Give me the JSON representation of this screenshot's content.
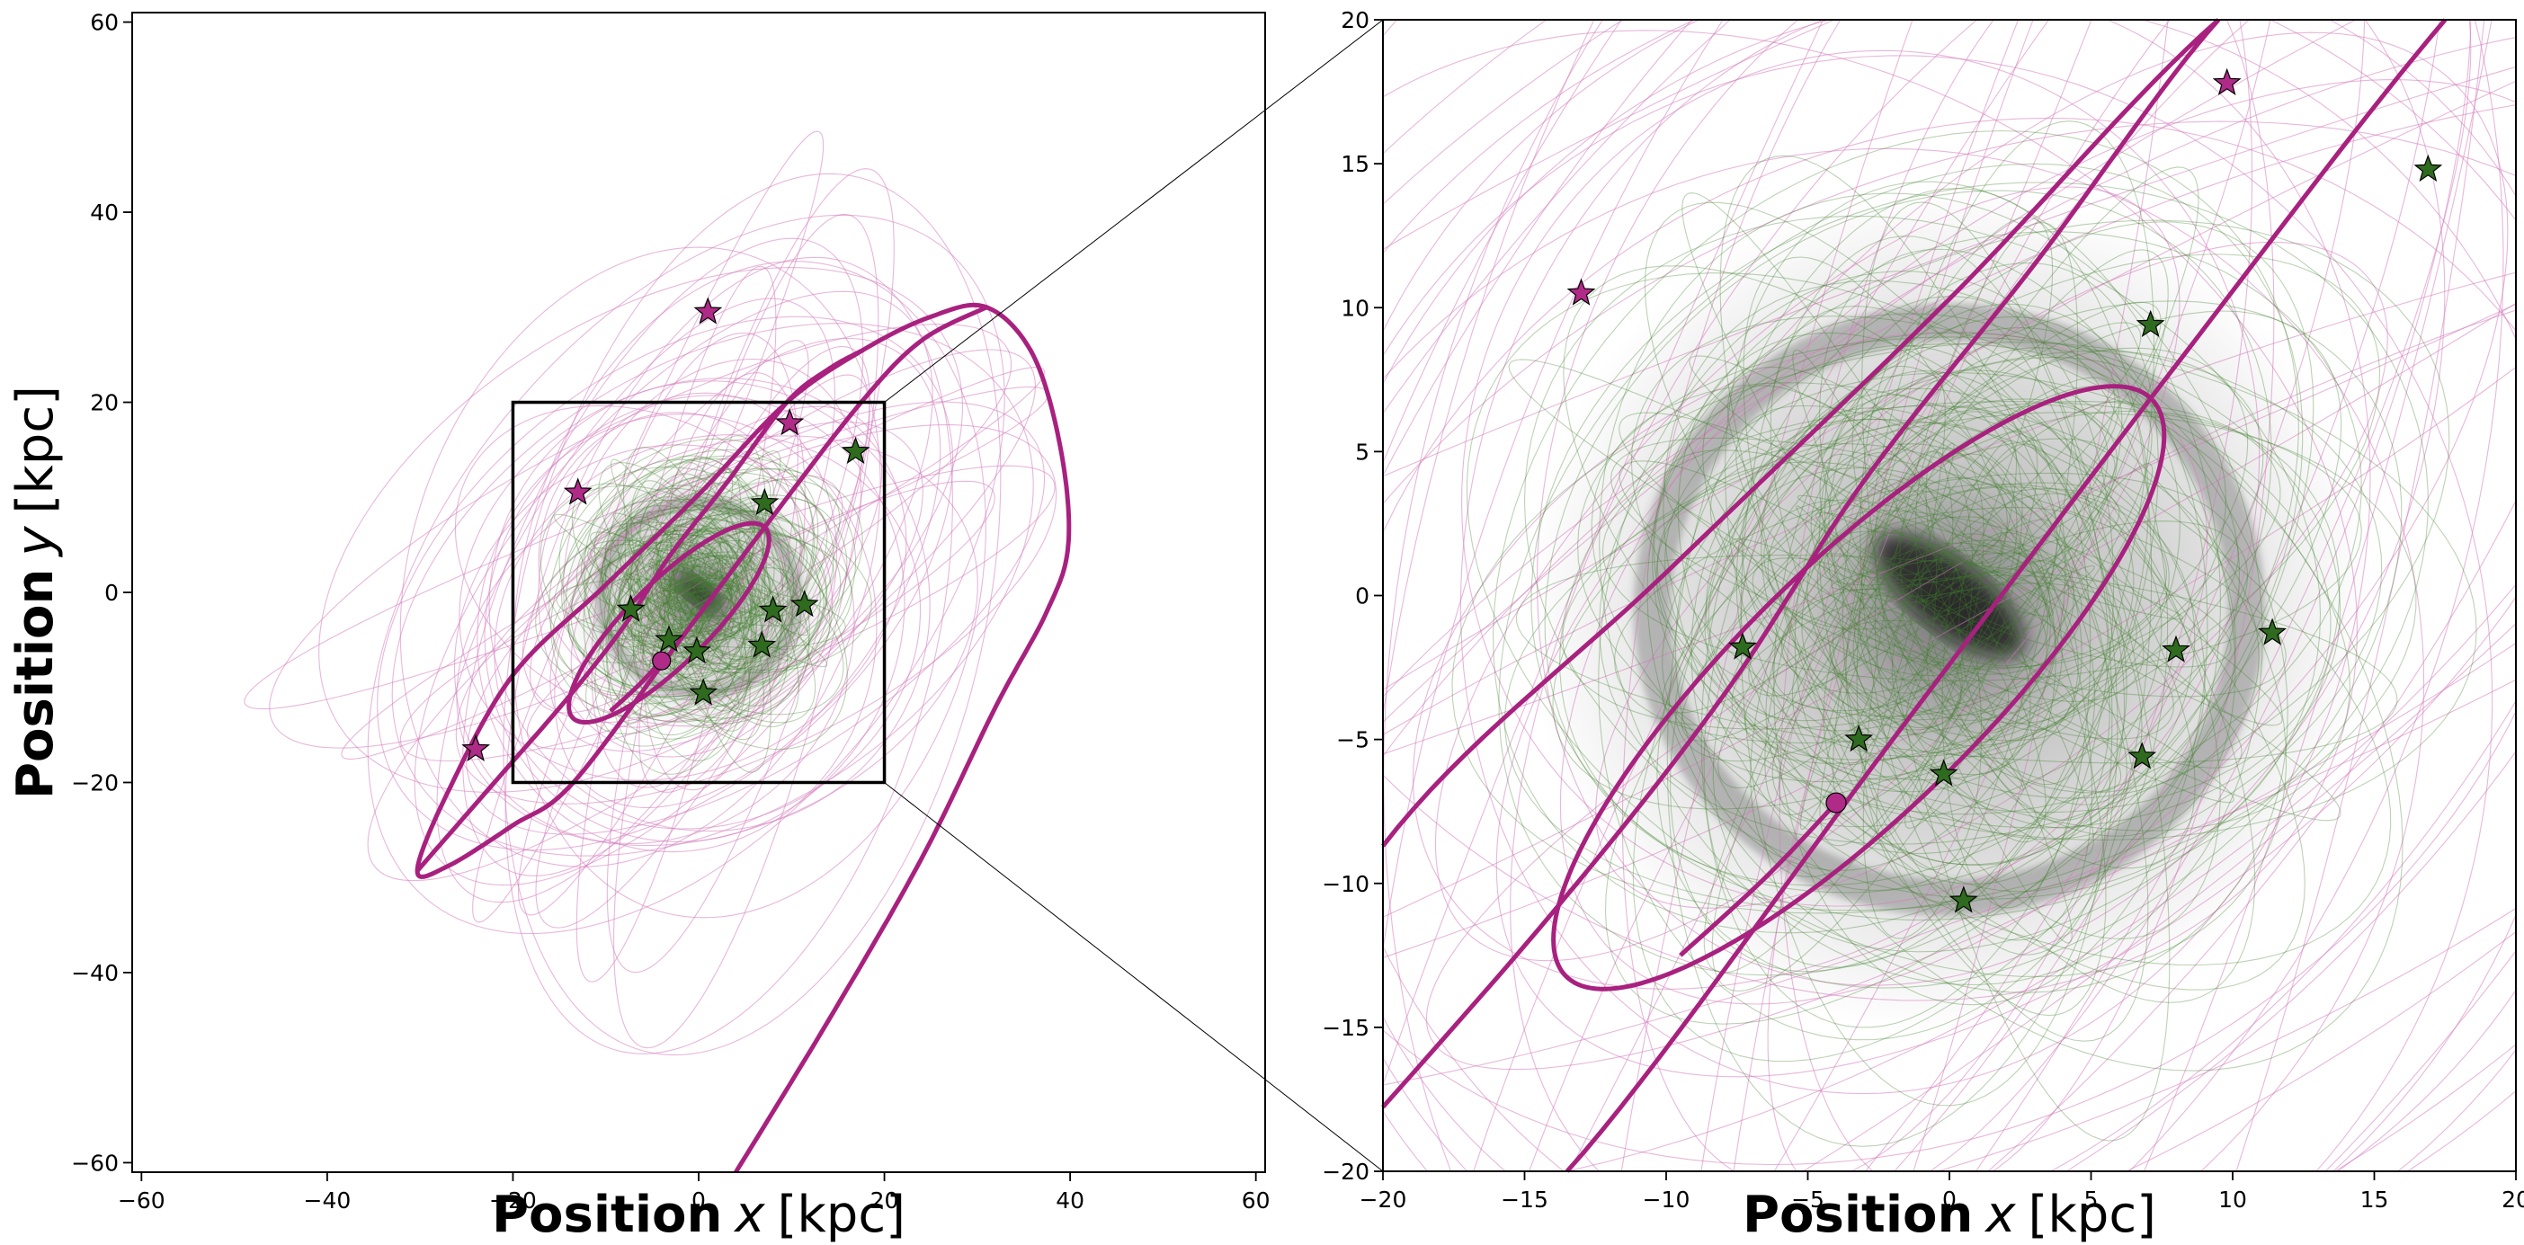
{
  "chart_data": {
    "type": "scatter",
    "title": "",
    "colors": {
      "accreted": "#a8217f",
      "accreted_thin": "#d47cbc",
      "insitu": "#2f6b1e",
      "insitu_thin": "#3f7f2c",
      "box": "#000000"
    },
    "panels": [
      {
        "id": "full",
        "xlabel": {
          "main": "Position",
          "var": "x",
          "unit": "[kpc]"
        },
        "ylabel": {
          "main": "Position",
          "var": "y",
          "unit": "[kpc]"
        },
        "xlim": [
          -61,
          61
        ],
        "ylim": [
          -61,
          61
        ],
        "xticks": [
          -60,
          -40,
          -20,
          0,
          20,
          40,
          60
        ],
        "xtick_labels": [
          "−60",
          "−40",
          "−20",
          "0",
          "20",
          "40",
          "60"
        ],
        "yticks": [
          -60,
          -40,
          -20,
          0,
          20,
          40,
          60
        ],
        "ytick_labels": [
          "−60",
          "−40",
          "−20",
          "0",
          "20",
          "40",
          "60"
        ],
        "zoom_box": {
          "xlim": [
            -20,
            20
          ],
          "ylim": [
            -20,
            20
          ]
        }
      },
      {
        "id": "zoom",
        "xlabel": {
          "main": "Position",
          "var": "x",
          "unit": "[kpc]"
        },
        "xlim": [
          -20,
          20
        ],
        "ylim": [
          -20,
          20
        ],
        "xticks": [
          -20,
          -15,
          -10,
          -5,
          0,
          5,
          10,
          15,
          20
        ],
        "xtick_labels": [
          "−20",
          "−15",
          "−10",
          "−5",
          "0",
          "5",
          "10",
          "15",
          "20"
        ],
        "yticks": [
          -20,
          -15,
          -10,
          -5,
          0,
          5,
          10,
          15,
          20
        ],
        "ytick_labels": [
          "−20",
          "−15",
          "−10",
          "−5",
          "0",
          "5",
          "10",
          "15",
          "20"
        ]
      }
    ],
    "accreted_stars": [
      [
        -13.0,
        10.5
      ],
      [
        9.8,
        17.8
      ],
      [
        1.0,
        29.5
      ],
      [
        -24.0,
        -16.5
      ]
    ],
    "insitu_stars": [
      [
        16.9,
        14.8
      ],
      [
        7.1,
        9.4
      ],
      [
        -7.3,
        -1.8
      ],
      [
        8.0,
        -1.9
      ],
      [
        11.4,
        -1.3
      ],
      [
        -3.2,
        -5.0
      ],
      [
        -0.2,
        -6.2
      ],
      [
        6.8,
        -5.6
      ],
      [
        0.5,
        -10.6
      ]
    ],
    "current_position_marker": [
      -4.0,
      -7.2
    ],
    "highlighted_orbits": [
      {
        "kind": "ellipse",
        "center": [
          -3.2,
          -3.2
        ],
        "semi_major": 14.4,
        "semi_minor": 4.3,
        "angle_deg": 44
      },
      {
        "kind": "path",
        "points": [
          [
            4,
            -61
          ],
          [
            14,
            -45
          ],
          [
            24,
            -28
          ],
          [
            32,
            -12
          ],
          [
            37.5,
            -2
          ],
          [
            39.8,
            5
          ],
          [
            39,
            15
          ],
          [
            36,
            25
          ],
          [
            31,
            30
          ],
          [
            25,
            29
          ],
          [
            17.7,
            25.5
          ],
          [
            9.5,
            20
          ],
          [
            0,
            10.3
          ],
          [
            -10,
            0.8
          ],
          [
            -20,
            -8.7
          ],
          [
            -27,
            -21
          ],
          [
            -30.3,
            -29.3
          ],
          [
            -27,
            -28.8
          ],
          [
            -20,
            -24.5
          ],
          [
            -13.5,
            -20
          ],
          [
            -2,
            -5
          ],
          [
            8,
            8
          ],
          [
            17.5,
            20
          ],
          [
            24,
            26.5
          ],
          [
            31,
            30
          ]
        ]
      },
      {
        "kind": "path",
        "points": [
          [
            17.7,
            25.5
          ],
          [
            14,
            23.5
          ],
          [
            9.5,
            20
          ],
          [
            3,
            11.5
          ],
          [
            -3,
            4
          ],
          [
            -8,
            -3.5
          ],
          [
            -14,
            -11
          ],
          [
            -22,
            -20
          ],
          [
            -30.3,
            -29.3
          ]
        ]
      },
      {
        "kind": "path",
        "points": [
          [
            -4.0,
            -7.2
          ],
          [
            -6.5,
            -9.8
          ],
          [
            -9.5,
            -12.5
          ]
        ]
      }
    ]
  }
}
